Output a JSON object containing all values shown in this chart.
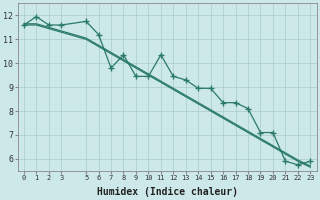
{
  "xlabel": "Humidex (Indice chaleur)",
  "bg_color": "#cce8e8",
  "line_color": "#2a7a6a",
  "ylim": [
    5.5,
    12.5
  ],
  "xlim": [
    -0.5,
    23.5
  ],
  "yticks": [
    6,
    7,
    8,
    9,
    10,
    11,
    12
  ],
  "xticks": [
    0,
    1,
    2,
    3,
    5,
    6,
    7,
    8,
    9,
    10,
    11,
    12,
    13,
    14,
    15,
    16,
    17,
    18,
    19,
    20,
    21,
    22,
    23
  ],
  "x_full": [
    0,
    1,
    2,
    3,
    5,
    6,
    7,
    8,
    9,
    10,
    11,
    12,
    13,
    14,
    15,
    16,
    17,
    18,
    19,
    20,
    21,
    22,
    23
  ],
  "line_jagged": [
    11.6,
    11.95,
    11.6,
    11.6,
    11.75,
    11.2,
    9.8,
    10.35,
    9.45,
    9.45,
    10.35,
    9.45,
    9.3,
    8.95,
    8.95,
    8.35,
    8.35,
    8.1,
    7.1,
    7.1,
    5.9,
    5.75,
    5.9
  ],
  "line_straight1": [
    11.6,
    11.6,
    11.45,
    11.3,
    11.0,
    10.7,
    10.4,
    10.1,
    9.8,
    9.5,
    9.2,
    8.9,
    8.6,
    8.3,
    8.0,
    7.7,
    7.4,
    7.1,
    6.8,
    6.5,
    6.2,
    5.9,
    5.65
  ],
  "line_straight2": [
    11.65,
    11.65,
    11.5,
    11.35,
    11.05,
    10.75,
    10.45,
    10.15,
    9.85,
    9.55,
    9.25,
    8.95,
    8.65,
    8.35,
    8.05,
    7.75,
    7.45,
    7.15,
    6.85,
    6.55,
    6.25,
    5.95,
    5.7
  ]
}
